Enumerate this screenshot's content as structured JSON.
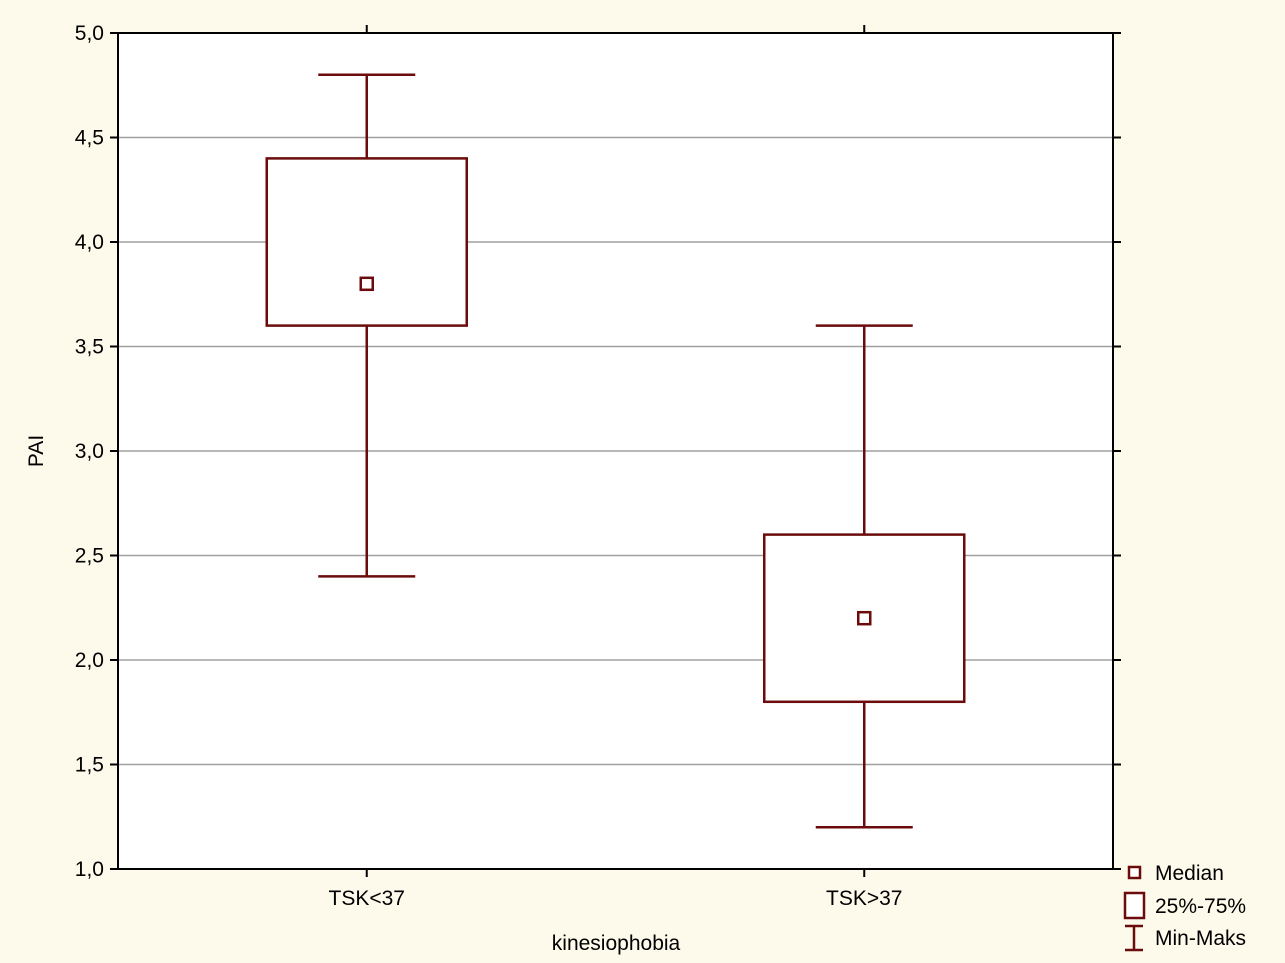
{
  "chart_data": {
    "type": "box",
    "xlabel": "kinesiophobia",
    "ylabel": "PAI",
    "ylim": [
      1.0,
      5.0
    ],
    "yticks": [
      "1,0",
      "1,5",
      "2,0",
      "2,5",
      "3,0",
      "3,5",
      "4,0",
      "4,5",
      "5,0"
    ],
    "ytick_values": [
      1.0,
      1.5,
      2.0,
      2.5,
      3.0,
      3.5,
      4.0,
      4.5,
      5.0
    ],
    "grid": true,
    "categories": [
      "TSK<37",
      "TSK>37"
    ],
    "boxes": [
      {
        "category": "TSK<37",
        "min": 2.4,
        "q1": 3.6,
        "median": 3.8,
        "q3": 4.4,
        "max": 4.8
      },
      {
        "category": "TSK>37",
        "min": 1.2,
        "q1": 1.8,
        "median": 2.2,
        "q3": 2.6,
        "max": 3.6
      }
    ],
    "legend": {
      "position": "bottom-right",
      "items": [
        {
          "label": "Median",
          "icon": "small-square-icon"
        },
        {
          "label": "25%-75%",
          "icon": "box-icon"
        },
        {
          "label": "Min-Maks",
          "icon": "whisker-icon"
        }
      ]
    },
    "colors": {
      "box": "#6b0b0b",
      "grid": "#a0a0a0",
      "axis": "#000000",
      "plot_background": "#ffffff",
      "page_background": "#fdfaeb"
    }
  }
}
